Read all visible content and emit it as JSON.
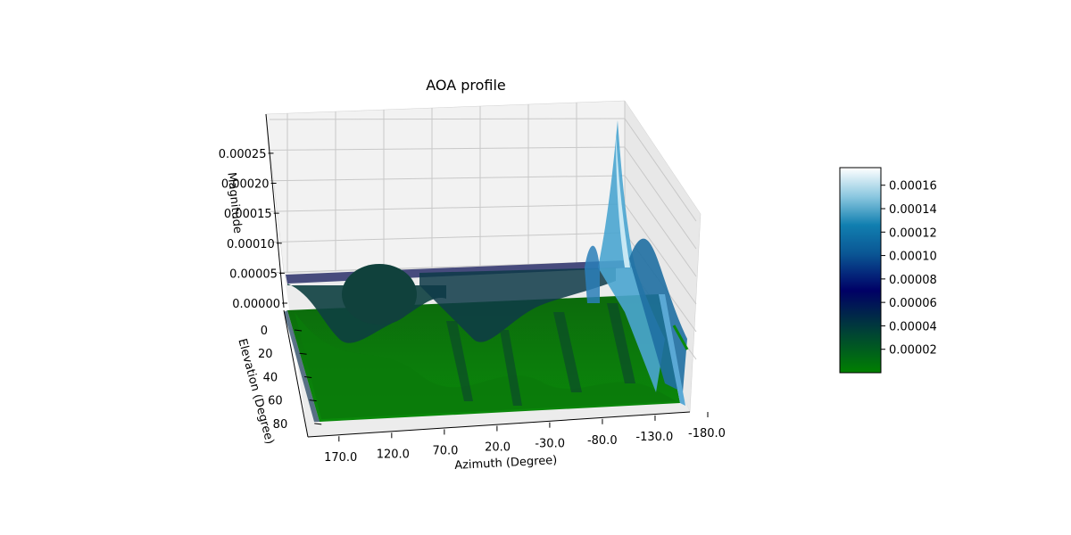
{
  "chart_data": {
    "type": "surface",
    "title": "AOA profile",
    "xlabel": "Azimuth (Degree)",
    "ylabel": "Elevation (Degree)",
    "zlabel": "Magnitude",
    "x_ticks": [
      "170.0",
      "120.0",
      "70.0",
      "20.0",
      "-30.0",
      "-80.0",
      "-130.0",
      "-180.0"
    ],
    "y_ticks": [
      "0",
      "20",
      "40",
      "60",
      "80"
    ],
    "z_ticks": [
      "0.00000",
      "0.00005",
      "0.00010",
      "0.00015",
      "0.00020",
      "0.00025"
    ],
    "xlim": [
      180,
      -180
    ],
    "ylim": [
      0,
      90
    ],
    "zlim": [
      0,
      0.00029
    ],
    "grid": true,
    "colormap": [
      "#008000",
      "#003b3b",
      "#000066",
      "#0a5694",
      "#117fb0",
      "#8cc8e0",
      "#ffffff"
    ],
    "colorbar": {
      "ticks": [
        "0.00002",
        "0.00004",
        "0.00006",
        "0.00008",
        "0.00010",
        "0.00012",
        "0.00014",
        "0.00016"
      ],
      "range": [
        0.0,
        0.000175
      ]
    },
    "peaks": [
      {
        "azimuth": -150,
        "elevation": 5,
        "magnitude": 0.00023
      },
      {
        "azimuth": -145,
        "elevation": 10,
        "magnitude": 0.00016
      },
      {
        "azimuth": -155,
        "elevation": 20,
        "magnitude": 0.00012
      },
      {
        "azimuth": -120,
        "elevation": 8,
        "magnitude": 8e-05
      },
      {
        "azimuth": 115,
        "elevation": 5,
        "magnitude": 4e-05
      },
      {
        "azimuth": 5,
        "elevation": 5,
        "magnitude": 4.5e-05
      },
      {
        "azimuth": -60,
        "elevation": 10,
        "magnitude": 4e-05
      }
    ]
  }
}
